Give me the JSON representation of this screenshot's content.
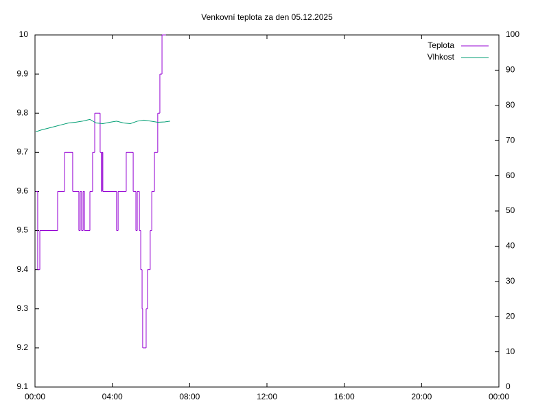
{
  "chart_data": {
    "type": "line",
    "title": "Venkovní teplota za den 05.12.2025",
    "xlim": [
      0,
      24
    ],
    "xticks": [
      {
        "value": 0,
        "label": "00:00"
      },
      {
        "value": 4,
        "label": "04:00"
      },
      {
        "value": 8,
        "label": "08:00"
      },
      {
        "value": 12,
        "label": "12:00"
      },
      {
        "value": 16,
        "label": "16:00"
      },
      {
        "value": 20,
        "label": "20:00"
      },
      {
        "value": 24,
        "label": "00:00"
      }
    ],
    "ylim": [
      9.1,
      10
    ],
    "yticks": [
      9.1,
      9.2,
      9.3,
      9.4,
      9.5,
      9.6,
      9.7,
      9.8,
      9.9,
      10
    ],
    "y2lim": [
      0,
      100
    ],
    "y2ticks": [
      0,
      10,
      20,
      30,
      40,
      50,
      60,
      70,
      80,
      90,
      100
    ],
    "legend": "top-right",
    "series": [
      {
        "name": "Teplota",
        "color": "#9400d3",
        "style": "steps",
        "x": [
          0.04,
          0.14,
          0.25,
          1.17,
          1.53,
          1.95,
          2.27,
          2.34,
          2.41,
          2.49,
          2.56,
          2.84,
          2.98,
          3.09,
          3.37,
          3.44,
          3.47,
          3.51,
          4.22,
          4.3,
          4.72,
          5.08,
          5.22,
          5.29,
          5.4,
          5.47,
          5.54,
          5.57,
          5.75,
          5.82,
          5.96,
          6.04,
          6.18,
          6.35,
          6.46,
          6.57,
          6.74
        ],
        "values": [
          9.6,
          9.4,
          9.5,
          9.6,
          9.7,
          9.6,
          9.5,
          9.6,
          9.5,
          9.6,
          9.5,
          9.6,
          9.7,
          9.8,
          9.7,
          9.6,
          9.7,
          9.6,
          9.5,
          9.6,
          9.7,
          9.6,
          9.5,
          9.6,
          9.5,
          9.4,
          9.3,
          9.2,
          9.3,
          9.4,
          9.5,
          9.6,
          9.7,
          9.8,
          9.9,
          10,
          10
        ]
      },
      {
        "name": "Vlhkost",
        "color": "#009e73",
        "axis": "y2",
        "style": "line",
        "x": [
          0.04,
          0.32,
          0.67,
          1.03,
          1.38,
          1.74,
          2.09,
          2.45,
          2.84,
          3.16,
          3.51,
          3.87,
          4.22,
          4.58,
          4.93,
          5.29,
          5.64,
          6.0,
          6.35,
          6.71,
          6.99
        ],
        "values": [
          72.5,
          73,
          73.5,
          74,
          74.5,
          75,
          75.2,
          75.5,
          76,
          75,
          74.8,
          75.2,
          75.5,
          75,
          74.8,
          75.5,
          75.8,
          75.5,
          75.2,
          75.3,
          75.5
        ]
      }
    ]
  }
}
